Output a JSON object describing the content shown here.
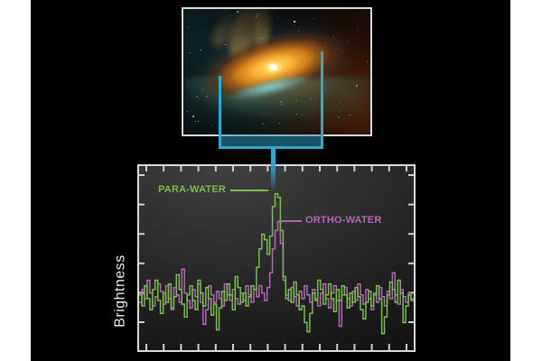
{
  "figure": {
    "page_background": "#ffffff",
    "canvas_background": "#000000",
    "artwork_name": "protoplanetary-disk-illustration",
    "artwork_border_color": "#d9d9d9",
    "bracket_color": "#2fa9d4"
  },
  "chart_data": {
    "type": "line",
    "subtype": "step-histogram-spectrum",
    "title": "",
    "xlabel": "",
    "ylabel": "Brightness",
    "x_axis": {
      "labels_visible": false,
      "tick_count": 16
    },
    "y_axis": {
      "labels_visible": false,
      "tick_count": 6
    },
    "grid": false,
    "legend_position": "inline-annotations",
    "frame_color": "#d9d9d9",
    "background": "dark-gray-gradient",
    "series": [
      {
        "name": "PARA-WATER",
        "color": "#74bf44",
        "style": "step",
        "values_normalized": [
          0.3,
          0.24,
          0.35,
          0.28,
          0.22,
          0.33,
          0.38,
          0.27,
          0.2,
          0.31,
          0.26,
          0.36,
          0.23,
          0.29,
          0.41,
          0.33,
          0.25,
          0.18,
          0.3,
          0.35,
          0.27,
          0.22,
          0.38,
          0.31,
          0.24,
          0.34,
          0.28,
          0.19,
          0.25,
          0.11,
          0.23,
          0.32,
          0.27,
          0.36,
          0.3,
          0.22,
          0.4,
          0.34,
          0.26,
          0.31,
          0.24,
          0.29,
          0.35,
          0.33,
          0.45,
          0.55,
          0.63,
          0.6,
          0.52,
          0.62,
          0.78,
          0.85,
          0.83,
          0.65,
          0.4,
          0.28,
          0.33,
          0.26,
          0.37,
          0.3,
          0.22,
          0.24,
          0.15,
          0.1,
          0.2,
          0.31,
          0.27,
          0.38,
          0.33,
          0.25,
          0.3,
          0.36,
          0.28,
          0.21,
          0.33,
          0.27,
          0.35,
          0.3,
          0.23,
          0.31,
          0.26,
          0.34,
          0.29,
          0.22,
          0.17,
          0.26,
          0.32,
          0.24,
          0.3,
          0.35,
          0.28,
          0.09,
          0.18,
          0.3,
          0.37,
          0.33,
          0.26,
          0.38,
          0.31,
          0.15,
          0.24,
          0.3,
          0.27
        ]
      },
      {
        "name": "ORTHO-WATER",
        "color": "#b763b9",
        "style": "step",
        "values_normalized": [
          0.26,
          0.33,
          0.28,
          0.38,
          0.31,
          0.24,
          0.29,
          0.36,
          0.32,
          0.25,
          0.35,
          0.28,
          0.22,
          0.34,
          0.3,
          0.26,
          0.44,
          0.31,
          0.27,
          0.23,
          0.33,
          0.29,
          0.36,
          0.26,
          0.14,
          0.22,
          0.35,
          0.3,
          0.26,
          0.32,
          0.28,
          0.24,
          0.36,
          0.3,
          0.27,
          0.33,
          0.28,
          0.25,
          0.31,
          0.27,
          0.35,
          0.3,
          0.26,
          0.33,
          0.29,
          0.35,
          0.31,
          0.27,
          0.34,
          0.42,
          0.55,
          0.65,
          0.7,
          0.58,
          0.38,
          0.3,
          0.27,
          0.34,
          0.29,
          0.24,
          0.32,
          0.28,
          0.35,
          0.3,
          0.26,
          0.33,
          0.28,
          0.24,
          0.31,
          0.36,
          0.28,
          0.23,
          0.31,
          0.35,
          0.27,
          0.13,
          0.3,
          0.34,
          0.28,
          0.24,
          0.32,
          0.27,
          0.36,
          0.3,
          0.25,
          0.33,
          0.28,
          0.22,
          0.31,
          0.26,
          0.34,
          0.29,
          0.24,
          0.32,
          0.28,
          0.42,
          0.3,
          0.25,
          0.33,
          0.29,
          0.26,
          0.31,
          0.28
        ]
      }
    ],
    "annotations": [
      {
        "text": "PARA-WATER",
        "color": "#74bf44",
        "points_to": "green-peak"
      },
      {
        "text": "ORTHO-WATER",
        "color": "#b763b9",
        "points_to": "purple-peak"
      }
    ]
  }
}
